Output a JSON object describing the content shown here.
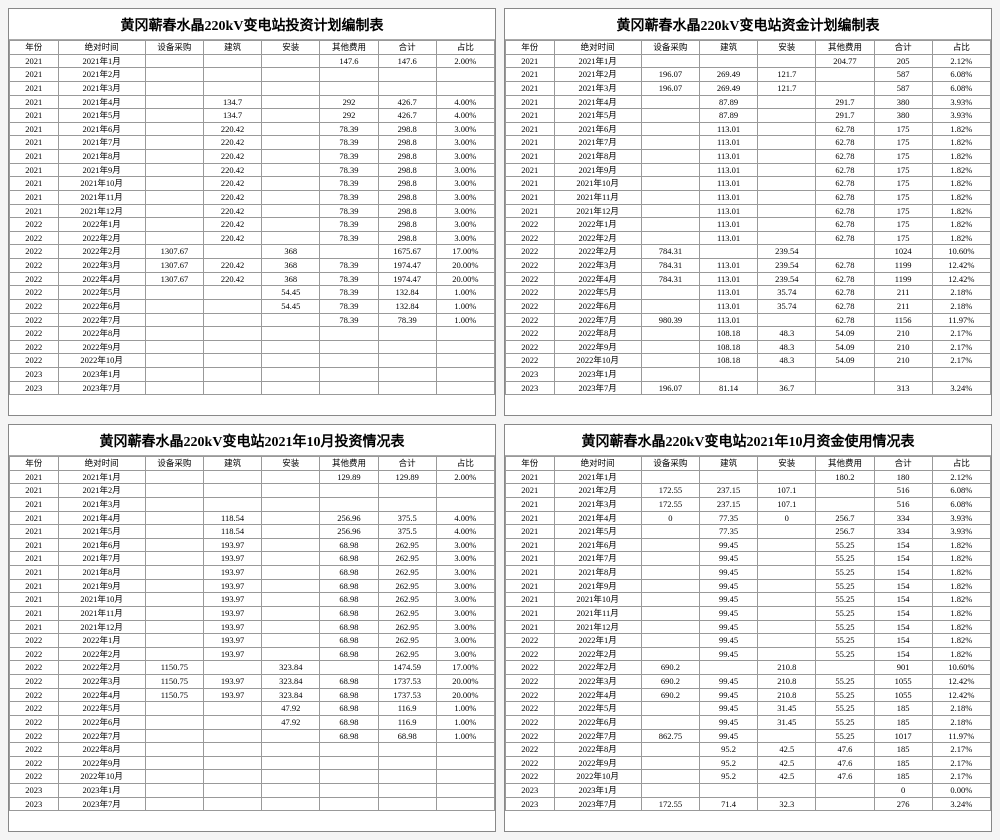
{
  "columns": [
    "年份",
    "绝对时间",
    "设备采购",
    "建筑",
    "安装",
    "其他费用",
    "合计",
    "占比"
  ],
  "tables": [
    {
      "title": "黄冈蕲春水晶220kV变电站投资计划编制表",
      "rows": [
        [
          "2021",
          "2021年1月",
          "",
          "",
          "",
          "147.6",
          "147.6",
          "2.00%"
        ],
        [
          "2021",
          "2021年2月",
          "",
          "",
          "",
          "",
          "",
          ""
        ],
        [
          "2021",
          "2021年3月",
          "",
          "",
          "",
          "",
          "",
          ""
        ],
        [
          "2021",
          "2021年4月",
          "",
          "134.7",
          "",
          "292",
          "426.7",
          "4.00%"
        ],
        [
          "2021",
          "2021年5月",
          "",
          "134.7",
          "",
          "292",
          "426.7",
          "4.00%"
        ],
        [
          "2021",
          "2021年6月",
          "",
          "220.42",
          "",
          "78.39",
          "298.8",
          "3.00%"
        ],
        [
          "2021",
          "2021年7月",
          "",
          "220.42",
          "",
          "78.39",
          "298.8",
          "3.00%"
        ],
        [
          "2021",
          "2021年8月",
          "",
          "220.42",
          "",
          "78.39",
          "298.8",
          "3.00%"
        ],
        [
          "2021",
          "2021年9月",
          "",
          "220.42",
          "",
          "78.39",
          "298.8",
          "3.00%"
        ],
        [
          "2021",
          "2021年10月",
          "",
          "220.42",
          "",
          "78.39",
          "298.8",
          "3.00%"
        ],
        [
          "2021",
          "2021年11月",
          "",
          "220.42",
          "",
          "78.39",
          "298.8",
          "3.00%"
        ],
        [
          "2021",
          "2021年12月",
          "",
          "220.42",
          "",
          "78.39",
          "298.8",
          "3.00%"
        ],
        [
          "2022",
          "2022年1月",
          "",
          "220.42",
          "",
          "78.39",
          "298.8",
          "3.00%"
        ],
        [
          "2022",
          "2022年2月",
          "",
          "220.42",
          "",
          "78.39",
          "298.8",
          "3.00%"
        ],
        [
          "2022",
          "2022年2月",
          "1307.67",
          "",
          "368",
          "",
          "1675.67",
          "17.00%"
        ],
        [
          "2022",
          "2022年3月",
          "1307.67",
          "220.42",
          "368",
          "78.39",
          "1974.47",
          "20.00%"
        ],
        [
          "2022",
          "2022年4月",
          "1307.67",
          "220.42",
          "368",
          "78.39",
          "1974.47",
          "20.00%"
        ],
        [
          "2022",
          "2022年5月",
          "",
          "",
          "54.45",
          "78.39",
          "132.84",
          "1.00%"
        ],
        [
          "2022",
          "2022年6月",
          "",
          "",
          "54.45",
          "78.39",
          "132.84",
          "1.00%"
        ],
        [
          "2022",
          "2022年7月",
          "",
          "",
          "",
          "78.39",
          "78.39",
          "1.00%"
        ],
        [
          "2022",
          "2022年8月",
          "",
          "",
          "",
          "",
          "",
          ""
        ],
        [
          "2022",
          "2022年9月",
          "",
          "",
          "",
          "",
          "",
          ""
        ],
        [
          "2022",
          "2022年10月",
          "",
          "",
          "",
          "",
          "",
          ""
        ],
        [
          "2023",
          "2023年1月",
          "",
          "",
          "",
          "",
          "",
          ""
        ],
        [
          "2023",
          "2023年7月",
          "",
          "",
          "",
          "",
          "",
          ""
        ]
      ]
    },
    {
      "title": "黄冈蕲春水晶220kV变电站资金计划编制表",
      "rows": [
        [
          "2021",
          "2021年1月",
          "",
          "",
          "",
          "204.77",
          "205",
          "2.12%"
        ],
        [
          "2021",
          "2021年2月",
          "196.07",
          "269.49",
          "121.7",
          "",
          "587",
          "6.08%"
        ],
        [
          "2021",
          "2021年3月",
          "196.07",
          "269.49",
          "121.7",
          "",
          "587",
          "6.08%"
        ],
        [
          "2021",
          "2021年4月",
          "",
          "87.89",
          "",
          "291.7",
          "380",
          "3.93%"
        ],
        [
          "2021",
          "2021年5月",
          "",
          "87.89",
          "",
          "291.7",
          "380",
          "3.93%"
        ],
        [
          "2021",
          "2021年6月",
          "",
          "113.01",
          "",
          "62.78",
          "175",
          "1.82%"
        ],
        [
          "2021",
          "2021年7月",
          "",
          "113.01",
          "",
          "62.78",
          "175",
          "1.82%"
        ],
        [
          "2021",
          "2021年8月",
          "",
          "113.01",
          "",
          "62.78",
          "175",
          "1.82%"
        ],
        [
          "2021",
          "2021年9月",
          "",
          "113.01",
          "",
          "62.78",
          "175",
          "1.82%"
        ],
        [
          "2021",
          "2021年10月",
          "",
          "113.01",
          "",
          "62.78",
          "175",
          "1.82%"
        ],
        [
          "2021",
          "2021年11月",
          "",
          "113.01",
          "",
          "62.78",
          "175",
          "1.82%"
        ],
        [
          "2021",
          "2021年12月",
          "",
          "113.01",
          "",
          "62.78",
          "175",
          "1.82%"
        ],
        [
          "2022",
          "2022年1月",
          "",
          "113.01",
          "",
          "62.78",
          "175",
          "1.82%"
        ],
        [
          "2022",
          "2022年2月",
          "",
          "113.01",
          "",
          "62.78",
          "175",
          "1.82%"
        ],
        [
          "2022",
          "2022年2月",
          "784.31",
          "",
          "239.54",
          "",
          "1024",
          "10.60%"
        ],
        [
          "2022",
          "2022年3月",
          "784.31",
          "113.01",
          "239.54",
          "62.78",
          "1199",
          "12.42%"
        ],
        [
          "2022",
          "2022年4月",
          "784.31",
          "113.01",
          "239.54",
          "62.78",
          "1199",
          "12.42%"
        ],
        [
          "2022",
          "2022年5月",
          "",
          "113.01",
          "35.74",
          "62.78",
          "211",
          "2.18%"
        ],
        [
          "2022",
          "2022年6月",
          "",
          "113.01",
          "35.74",
          "62.78",
          "211",
          "2.18%"
        ],
        [
          "2022",
          "2022年7月",
          "980.39",
          "113.01",
          "",
          "62.78",
          "1156",
          "11.97%"
        ],
        [
          "2022",
          "2022年8月",
          "",
          "108.18",
          "48.3",
          "54.09",
          "210",
          "2.17%"
        ],
        [
          "2022",
          "2022年9月",
          "",
          "108.18",
          "48.3",
          "54.09",
          "210",
          "2.17%"
        ],
        [
          "2022",
          "2022年10月",
          "",
          "108.18",
          "48.3",
          "54.09",
          "210",
          "2.17%"
        ],
        [
          "2023",
          "2023年1月",
          "",
          "",
          "",
          "",
          "",
          ""
        ],
        [
          "2023",
          "2023年7月",
          "196.07",
          "81.14",
          "36.7",
          "",
          "313",
          "3.24%"
        ]
      ]
    },
    {
      "title": "黄冈蕲春水晶220kV变电站2021年10月投资情况表",
      "rows": [
        [
          "2021",
          "2021年1月",
          "",
          "",
          "",
          "129.89",
          "129.89",
          "2.00%"
        ],
        [
          "2021",
          "2021年2月",
          "",
          "",
          "",
          "",
          "",
          ""
        ],
        [
          "2021",
          "2021年3月",
          "",
          "",
          "",
          "",
          "",
          ""
        ],
        [
          "2021",
          "2021年4月",
          "",
          "118.54",
          "",
          "256.96",
          "375.5",
          "4.00%"
        ],
        [
          "2021",
          "2021年5月",
          "",
          "118.54",
          "",
          "256.96",
          "375.5",
          "4.00%"
        ],
        [
          "2021",
          "2021年6月",
          "",
          "193.97",
          "",
          "68.98",
          "262.95",
          "3.00%"
        ],
        [
          "2021",
          "2021年7月",
          "",
          "193.97",
          "",
          "68.98",
          "262.95",
          "3.00%"
        ],
        [
          "2021",
          "2021年8月",
          "",
          "193.97",
          "",
          "68.98",
          "262.95",
          "3.00%"
        ],
        [
          "2021",
          "2021年9月",
          "",
          "193.97",
          "",
          "68.98",
          "262.95",
          "3.00%"
        ],
        [
          "2021",
          "2021年10月",
          "",
          "193.97",
          "",
          "68.98",
          "262.95",
          "3.00%"
        ],
        [
          "2021",
          "2021年11月",
          "",
          "193.97",
          "",
          "68.98",
          "262.95",
          "3.00%"
        ],
        [
          "2021",
          "2021年12月",
          "",
          "193.97",
          "",
          "68.98",
          "262.95",
          "3.00%"
        ],
        [
          "2022",
          "2022年1月",
          "",
          "193.97",
          "",
          "68.98",
          "262.95",
          "3.00%"
        ],
        [
          "2022",
          "2022年2月",
          "",
          "193.97",
          "",
          "68.98",
          "262.95",
          "3.00%"
        ],
        [
          "2022",
          "2022年2月",
          "1150.75",
          "",
          "323.84",
          "",
          "1474.59",
          "17.00%"
        ],
        [
          "2022",
          "2022年3月",
          "1150.75",
          "193.97",
          "323.84",
          "68.98",
          "1737.53",
          "20.00%"
        ],
        [
          "2022",
          "2022年4月",
          "1150.75",
          "193.97",
          "323.84",
          "68.98",
          "1737.53",
          "20.00%"
        ],
        [
          "2022",
          "2022年5月",
          "",
          "",
          "47.92",
          "68.98",
          "116.9",
          "1.00%"
        ],
        [
          "2022",
          "2022年6月",
          "",
          "",
          "47.92",
          "68.98",
          "116.9",
          "1.00%"
        ],
        [
          "2022",
          "2022年7月",
          "",
          "",
          "",
          "68.98",
          "68.98",
          "1.00%"
        ],
        [
          "2022",
          "2022年8月",
          "",
          "",
          "",
          "",
          "",
          ""
        ],
        [
          "2022",
          "2022年9月",
          "",
          "",
          "",
          "",
          "",
          ""
        ],
        [
          "2022",
          "2022年10月",
          "",
          "",
          "",
          "",
          "",
          ""
        ],
        [
          "2023",
          "2023年1月",
          "",
          "",
          "",
          "",
          "",
          ""
        ],
        [
          "2023",
          "2023年7月",
          "",
          "",
          "",
          "",
          "",
          ""
        ]
      ]
    },
    {
      "title": "黄冈蕲春水晶220kV变电站2021年10月资金使用情况表",
      "rows": [
        [
          "2021",
          "2021年1月",
          "",
          "",
          "",
          "180.2",
          "180",
          "2.12%"
        ],
        [
          "2021",
          "2021年2月",
          "172.55",
          "237.15",
          "107.1",
          "",
          "516",
          "6.08%"
        ],
        [
          "2021",
          "2021年3月",
          "172.55",
          "237.15",
          "107.1",
          "",
          "516",
          "6.08%"
        ],
        [
          "2021",
          "2021年4月",
          "0",
          "77.35",
          "0",
          "256.7",
          "334",
          "3.93%"
        ],
        [
          "2021",
          "2021年5月",
          "",
          "77.35",
          "",
          "256.7",
          "334",
          "3.93%"
        ],
        [
          "2021",
          "2021年6月",
          "",
          "99.45",
          "",
          "55.25",
          "154",
          "1.82%"
        ],
        [
          "2021",
          "2021年7月",
          "",
          "99.45",
          "",
          "55.25",
          "154",
          "1.82%"
        ],
        [
          "2021",
          "2021年8月",
          "",
          "99.45",
          "",
          "55.25",
          "154",
          "1.82%"
        ],
        [
          "2021",
          "2021年9月",
          "",
          "99.45",
          "",
          "55.25",
          "154",
          "1.82%"
        ],
        [
          "2021",
          "2021年10月",
          "",
          "99.45",
          "",
          "55.25",
          "154",
          "1.82%"
        ],
        [
          "2021",
          "2021年11月",
          "",
          "99.45",
          "",
          "55.25",
          "154",
          "1.82%"
        ],
        [
          "2021",
          "2021年12月",
          "",
          "99.45",
          "",
          "55.25",
          "154",
          "1.82%"
        ],
        [
          "2022",
          "2022年1月",
          "",
          "99.45",
          "",
          "55.25",
          "154",
          "1.82%"
        ],
        [
          "2022",
          "2022年2月",
          "",
          "99.45",
          "",
          "55.25",
          "154",
          "1.82%"
        ],
        [
          "2022",
          "2022年2月",
          "690.2",
          "",
          "210.8",
          "",
          "901",
          "10.60%"
        ],
        [
          "2022",
          "2022年3月",
          "690.2",
          "99.45",
          "210.8",
          "55.25",
          "1055",
          "12.42%"
        ],
        [
          "2022",
          "2022年4月",
          "690.2",
          "99.45",
          "210.8",
          "55.25",
          "1055",
          "12.42%"
        ],
        [
          "2022",
          "2022年5月",
          "",
          "99.45",
          "31.45",
          "55.25",
          "185",
          "2.18%"
        ],
        [
          "2022",
          "2022年6月",
          "",
          "99.45",
          "31.45",
          "55.25",
          "185",
          "2.18%"
        ],
        [
          "2022",
          "2022年7月",
          "862.75",
          "99.45",
          "",
          "55.25",
          "1017",
          "11.97%"
        ],
        [
          "2022",
          "2022年8月",
          "",
          "95.2",
          "42.5",
          "47.6",
          "185",
          "2.17%"
        ],
        [
          "2022",
          "2022年9月",
          "",
          "95.2",
          "42.5",
          "47.6",
          "185",
          "2.17%"
        ],
        [
          "2022",
          "2022年10月",
          "",
          "95.2",
          "42.5",
          "47.6",
          "185",
          "2.17%"
        ],
        [
          "2023",
          "2023年1月",
          "",
          "",
          "",
          "",
          "0",
          "0.00%"
        ],
        [
          "2023",
          "2023年7月",
          "172.55",
          "71.4",
          "32.3",
          "",
          "276",
          "3.24%"
        ]
      ]
    }
  ]
}
